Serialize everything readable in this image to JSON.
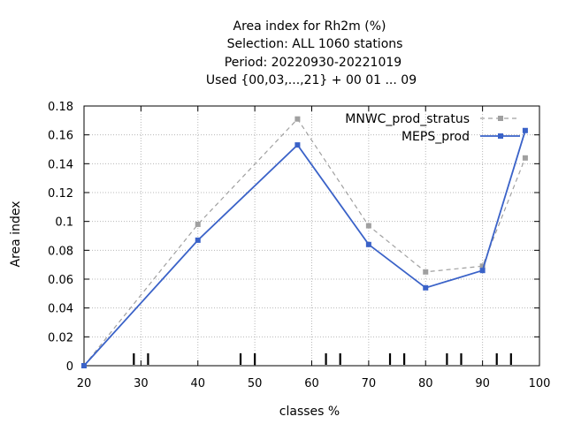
{
  "chart_data": {
    "type": "line",
    "title_lines": [
      "Area index  for Rh2m (%)",
      "Selection: ALL    1060 stations",
      "Period: 20220930-20221019",
      "Used {00,03,...,21} + 00 01 ... 09"
    ],
    "xlabel": "classes %",
    "ylabel": "Area index",
    "xlim": [
      20,
      100
    ],
    "ylim": [
      0,
      0.18
    ],
    "xticks": [
      "20",
      "30",
      "40",
      "50",
      "60",
      "70",
      "80",
      "90",
      "100"
    ],
    "yticks": [
      "0",
      "0.02",
      "0.04",
      "0.06",
      "0.08",
      "0.1",
      "0.12",
      "0.14",
      "0.16",
      "0.18"
    ],
    "grid": true,
    "legend_position": "top-right",
    "series": [
      {
        "name": "MNWC_prod_stratus",
        "color": "#a0a0a0",
        "dashed": true,
        "x": [
          20,
          40,
          57.5,
          70,
          80,
          90,
          97.5
        ],
        "y": [
          0.0,
          0.098,
          0.171,
          0.097,
          0.065,
          0.069,
          0.144
        ]
      },
      {
        "name": "MEPS_prod",
        "color": "#3a62c8",
        "dashed": false,
        "x": [
          20,
          40,
          57.5,
          70,
          80,
          90,
          97.5
        ],
        "y": [
          0.0,
          0.087,
          0.153,
          0.084,
          0.054,
          0.066,
          0.163
        ]
      }
    ]
  }
}
